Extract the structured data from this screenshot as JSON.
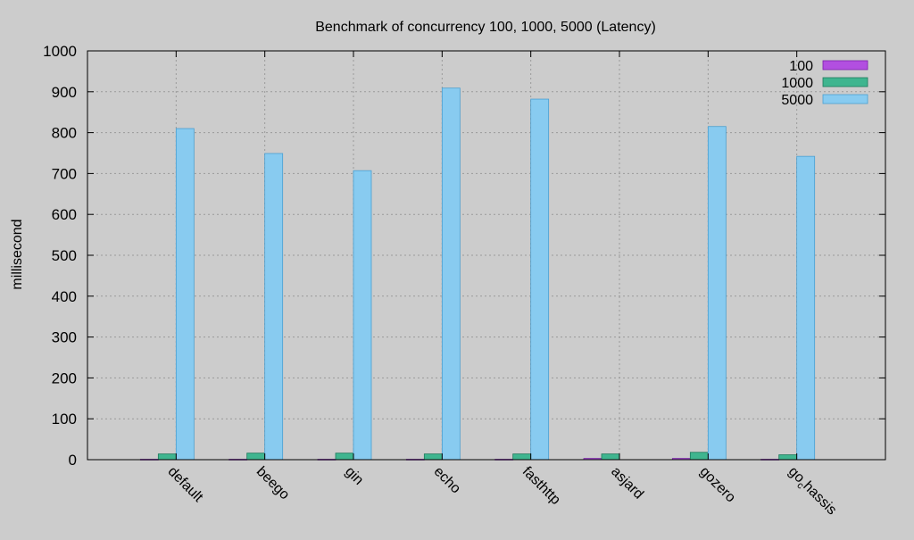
{
  "chart_data": {
    "type": "bar",
    "title": "Benchmark of concurrency 100, 1000, 5000 (Latency)",
    "xlabel": "",
    "ylabel": "millisecond",
    "ylim": [
      0,
      1000
    ],
    "yticks": [
      0,
      100,
      200,
      300,
      400,
      500,
      600,
      700,
      800,
      900,
      1000
    ],
    "grid": true,
    "legend_position": "top-right",
    "categories": [
      "default",
      "beego",
      "gin",
      "echo",
      "fasthttp",
      "asjard",
      "go-zero",
      "gochassis"
    ],
    "category_label_parts": [
      {
        "base": "default",
        "sub": "",
        "tail": ""
      },
      {
        "base": "beego",
        "sub": "",
        "tail": ""
      },
      {
        "base": "gin",
        "sub": "",
        "tail": ""
      },
      {
        "base": "echo",
        "sub": "",
        "tail": ""
      },
      {
        "base": "fasthttp",
        "sub": "",
        "tail": ""
      },
      {
        "base": "asjard",
        "sub": "",
        "tail": ""
      },
      {
        "base": "go",
        "sub": "",
        "tail": "zero"
      },
      {
        "base": "go",
        "sub": "c",
        "tail": "hassis"
      }
    ],
    "series": [
      {
        "name": "100",
        "color": "#b24fe0",
        "stroke": "#7a1fa8",
        "values": [
          1,
          1,
          1,
          1,
          1,
          3,
          3,
          1
        ]
      },
      {
        "name": "1000",
        "color": "#3fb58f",
        "stroke": "#1e7a5c",
        "values": [
          14,
          16,
          16,
          14,
          14,
          14,
          18,
          12
        ]
      },
      {
        "name": "5000",
        "color": "#88cbf0",
        "stroke": "#4a9fd0",
        "values": [
          810,
          749,
          707,
          909,
          882,
          0,
          815,
          742
        ]
      }
    ]
  }
}
